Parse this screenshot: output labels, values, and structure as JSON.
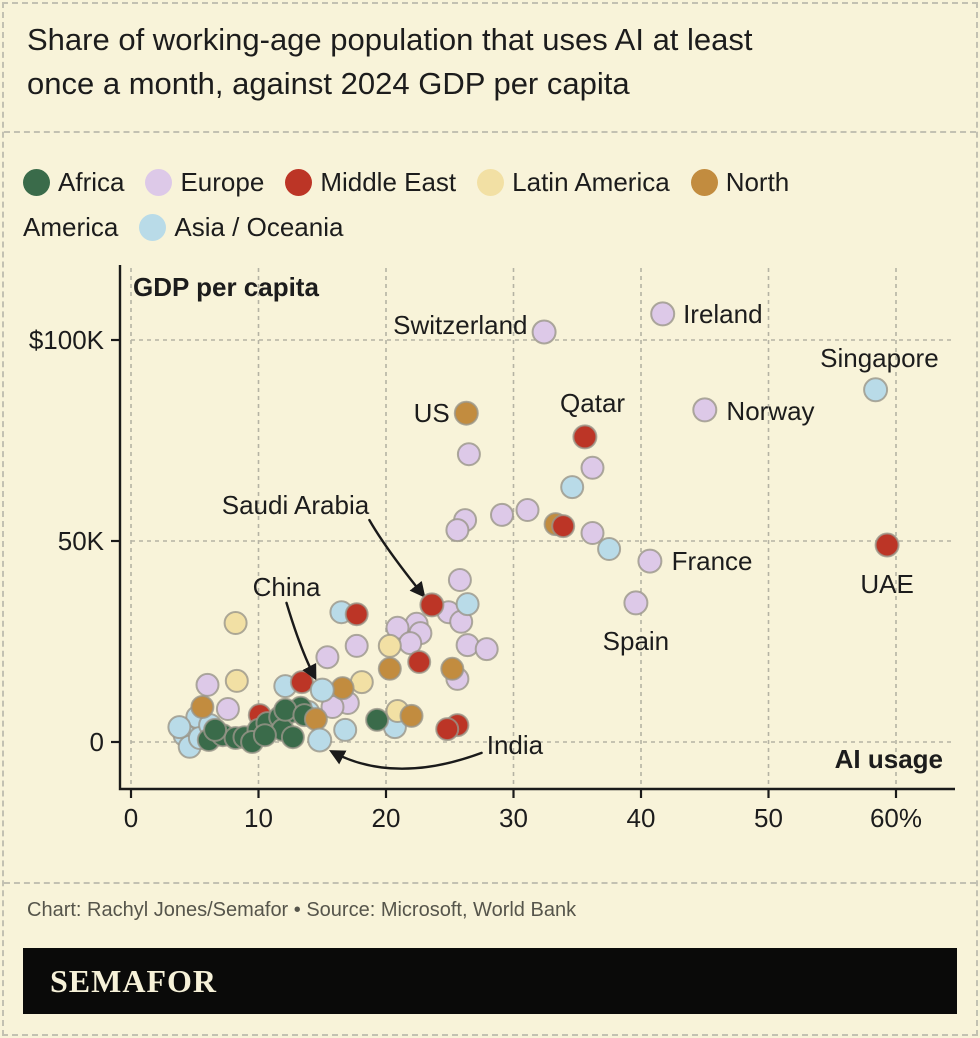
{
  "title": {
    "lines": [
      "Share of working-age population that uses AI at least",
      "once a month, against 2024 GDP per capita"
    ]
  },
  "colors": {
    "africa": "#3a6b4a",
    "europe": "#ddc9e8",
    "middle_east": "#bc3526",
    "latin_america": "#f2e0a4",
    "north_america": "#c28c3f",
    "asia_oceania": "#b9dbe8",
    "dot_stroke": "#9a968a",
    "background": "#f8f3d9",
    "grid": "#b5b3a4",
    "axis": "#1a1a1a",
    "text": "#1c1c1c",
    "muted_text": "#56554b",
    "logo_bg": "#0a0a09",
    "logo_text": "#f6f1d8"
  },
  "legend": {
    "rows": [
      [
        {
          "region": "africa",
          "label": "Africa"
        },
        {
          "region": "europe",
          "label": "Europe"
        },
        {
          "region": "middle_east",
          "label": "Middle East"
        },
        {
          "region": "latin_america",
          "label": "Latin America"
        },
        {
          "region": "north_america",
          "label": "North"
        }
      ],
      [
        {
          "region": null,
          "label": "America"
        },
        {
          "region": "asia_oceania",
          "label": "Asia / Oceania"
        }
      ]
    ]
  },
  "chart_data": {
    "type": "scatter",
    "x_axis": {
      "label": "AI usage",
      "units": "% of working-age population",
      "ticks": [
        0,
        10,
        20,
        30,
        40,
        50,
        60
      ],
      "tick_labels": [
        "0",
        "10",
        "20",
        "30",
        "40",
        "50",
        "60%"
      ],
      "range": [
        0,
        64.5
      ]
    },
    "y_axis": {
      "label": "GDP per capita",
      "units": "USD thousands",
      "ticks": [
        0,
        50,
        100
      ],
      "tick_labels": [
        "0",
        "50K",
        "$100K"
      ],
      "range": [
        0,
        118
      ]
    },
    "grid": true,
    "labeled_points": [
      {
        "name": "Switzerland",
        "region": "europe",
        "x": 32.4,
        "y": 102.0
      },
      {
        "name": "Ireland",
        "region": "europe",
        "x": 41.7,
        "y": 106.5
      },
      {
        "name": "Singapore",
        "region": "asia_oceania",
        "x": 58.4,
        "y": 87.6
      },
      {
        "name": "US",
        "region": "north_america",
        "x": 26.3,
        "y": 81.8
      },
      {
        "name": "Norway",
        "region": "europe",
        "x": 45.0,
        "y": 82.6
      },
      {
        "name": "Qatar",
        "region": "middle_east",
        "x": 35.6,
        "y": 75.9
      },
      {
        "name": "Saudi Arabia",
        "region": "middle_east",
        "x": 23.6,
        "y": 34.1
      },
      {
        "name": "France",
        "region": "europe",
        "x": 40.7,
        "y": 45.0
      },
      {
        "name": "Spain",
        "region": "europe",
        "x": 39.6,
        "y": 34.6
      },
      {
        "name": "UAE",
        "region": "middle_east",
        "x": 59.3,
        "y": 49.0
      },
      {
        "name": "China",
        "region": "asia_oceania",
        "x": 15.0,
        "y": 12.9
      },
      {
        "name": "India",
        "region": "asia_oceania",
        "x": 14.8,
        "y": 0.5
      }
    ],
    "labels": [
      {
        "for": "Switzerland",
        "x": 31.1,
        "y": 103.7,
        "anchor": "end"
      },
      {
        "for": "Ireland",
        "x": 43.3,
        "y": 106.5,
        "anchor": "start"
      },
      {
        "for": "Singapore",
        "x": 58.7,
        "y": 95.5,
        "anchor": "middle"
      },
      {
        "for": "US",
        "x": 25.0,
        "y": 81.8,
        "anchor": "end"
      },
      {
        "for": "Norway",
        "x": 46.7,
        "y": 82.3,
        "anchor": "start"
      },
      {
        "for": "Qatar",
        "x": 36.2,
        "y": 84.3,
        "anchor": "middle"
      },
      {
        "for": "Saudi Arabia",
        "x": 12.9,
        "y": 59.0,
        "anchor": "middle"
      },
      {
        "for": "France",
        "x": 42.4,
        "y": 45.0,
        "anchor": "start"
      },
      {
        "for": "Spain",
        "x": 39.6,
        "y": 25.1,
        "anchor": "middle"
      },
      {
        "for": "UAE",
        "x": 59.3,
        "y": 39.3,
        "anchor": "middle"
      },
      {
        "for": "China",
        "x": 12.2,
        "y": 38.6,
        "anchor": "middle"
      },
      {
        "for": "India",
        "x": 27.9,
        "y": -0.7,
        "anchor": "start"
      }
    ],
    "arrows": [
      {
        "for": "Saudi Arabia",
        "from": [
          18.7,
          55.2
        ],
        "ctrl": [
          20.0,
          48.0
        ],
        "to": [
          22.9,
          36.6
        ]
      },
      {
        "for": "China",
        "from": [
          12.2,
          34.6
        ],
        "ctrl": [
          13.3,
          22.9
        ],
        "to": [
          14.4,
          16.2
        ]
      },
      {
        "for": "India",
        "from": [
          27.5,
          -2.7
        ],
        "ctrl": [
          20.7,
          -10.7
        ],
        "to": [
          15.8,
          -2.5
        ]
      }
    ],
    "points": [
      {
        "region": "europe",
        "x": 26.5,
        "y": 71.6
      },
      {
        "region": "europe",
        "x": 36.2,
        "y": 68.2
      },
      {
        "region": "europe",
        "x": 31.1,
        "y": 57.7
      },
      {
        "region": "europe",
        "x": 29.1,
        "y": 56.5
      },
      {
        "region": "europe",
        "x": 26.2,
        "y": 55.2
      },
      {
        "region": "europe",
        "x": 25.6,
        "y": 52.7
      },
      {
        "region": "europe",
        "x": 36.2,
        "y": 52.0
      },
      {
        "region": "europe",
        "x": 25.8,
        "y": 40.3
      },
      {
        "region": "europe",
        "x": 24.9,
        "y": 32.3
      },
      {
        "region": "europe",
        "x": 25.9,
        "y": 29.9
      },
      {
        "region": "europe",
        "x": 22.4,
        "y": 29.4
      },
      {
        "region": "europe",
        "x": 22.7,
        "y": 27.1
      },
      {
        "region": "europe",
        "x": 20.9,
        "y": 28.4
      },
      {
        "region": "europe",
        "x": 21.9,
        "y": 24.6
      },
      {
        "region": "europe",
        "x": 17.7,
        "y": 23.9
      },
      {
        "region": "europe",
        "x": 26.4,
        "y": 24.1
      },
      {
        "region": "europe",
        "x": 27.9,
        "y": 23.1
      },
      {
        "region": "europe",
        "x": 25.6,
        "y": 15.7
      },
      {
        "region": "europe",
        "x": 15.4,
        "y": 21.1
      },
      {
        "region": "europe",
        "x": 17.0,
        "y": 9.7
      },
      {
        "region": "europe",
        "x": 15.8,
        "y": 8.7
      },
      {
        "region": "europe",
        "x": 6.0,
        "y": 14.2
      },
      {
        "region": "europe",
        "x": 7.6,
        "y": 8.2
      },
      {
        "region": "asia_oceania",
        "x": 34.6,
        "y": 63.4
      },
      {
        "region": "asia_oceania",
        "x": 37.5,
        "y": 48.0
      },
      {
        "region": "asia_oceania",
        "x": 26.4,
        "y": 34.3
      },
      {
        "region": "asia_oceania",
        "x": 16.5,
        "y": 32.3
      },
      {
        "region": "asia_oceania",
        "x": 16.8,
        "y": 3.0
      },
      {
        "region": "asia_oceania",
        "x": 20.7,
        "y": 3.7
      },
      {
        "region": "asia_oceania",
        "x": 12.1,
        "y": 13.9
      },
      {
        "region": "asia_oceania",
        "x": 13.9,
        "y": 7.5
      },
      {
        "region": "asia_oceania",
        "x": 5.2,
        "y": 6.2
      },
      {
        "region": "asia_oceania",
        "x": 4.2,
        "y": 1.7
      },
      {
        "region": "asia_oceania",
        "x": 4.6,
        "y": -1.2
      },
      {
        "region": "asia_oceania",
        "x": 3.8,
        "y": 3.7
      },
      {
        "region": "asia_oceania",
        "x": 5.4,
        "y": 1.0
      },
      {
        "region": "asia_oceania",
        "x": 6.2,
        "y": 4.2
      },
      {
        "region": "latin_america",
        "x": 8.2,
        "y": 29.6
      },
      {
        "region": "latin_america",
        "x": 8.3,
        "y": 15.2
      },
      {
        "region": "latin_america",
        "x": 20.3,
        "y": 23.9
      },
      {
        "region": "latin_america",
        "x": 20.9,
        "y": 7.7
      },
      {
        "region": "latin_america",
        "x": 18.1,
        "y": 14.9
      },
      {
        "region": "north_america",
        "x": 33.3,
        "y": 54.2
      },
      {
        "region": "middle_east",
        "x": 33.9,
        "y": 53.7
      },
      {
        "region": "middle_east",
        "x": 17.7,
        "y": 31.8
      },
      {
        "region": "middle_east",
        "x": 22.6,
        "y": 19.9
      },
      {
        "region": "middle_east",
        "x": 13.4,
        "y": 14.9
      },
      {
        "region": "middle_east",
        "x": 25.6,
        "y": 4.2
      },
      {
        "region": "middle_east",
        "x": 24.8,
        "y": 3.2
      },
      {
        "region": "middle_east",
        "x": 10.1,
        "y": 6.7
      },
      {
        "region": "africa",
        "x": 6.1,
        "y": 0.5
      },
      {
        "region": "africa",
        "x": 7.2,
        "y": 1.7
      },
      {
        "region": "africa",
        "x": 8.2,
        "y": 1.0
      },
      {
        "region": "africa",
        "x": 8.9,
        "y": 1.2
      },
      {
        "region": "africa",
        "x": 10.0,
        "y": 3.0
      },
      {
        "region": "africa",
        "x": 10.7,
        "y": 4.7
      },
      {
        "region": "africa",
        "x": 11.7,
        "y": 6.2
      },
      {
        "region": "africa",
        "x": 12.5,
        "y": 7.5
      },
      {
        "region": "africa",
        "x": 13.3,
        "y": 8.5
      },
      {
        "region": "africa",
        "x": 11.9,
        "y": 3.0
      },
      {
        "region": "africa",
        "x": 12.7,
        "y": 1.2
      },
      {
        "region": "africa",
        "x": 19.3,
        "y": 5.5
      },
      {
        "region": "africa",
        "x": 12.1,
        "y": 8.0
      },
      {
        "region": "africa",
        "x": 6.6,
        "y": 3.0
      },
      {
        "region": "africa",
        "x": 9.5,
        "y": 0.0
      },
      {
        "region": "africa",
        "x": 10.5,
        "y": 1.7
      },
      {
        "region": "africa",
        "x": 13.6,
        "y": 6.7
      },
      {
        "region": "north_america",
        "x": 25.2,
        "y": 18.2
      },
      {
        "region": "north_america",
        "x": 20.3,
        "y": 18.2
      },
      {
        "region": "north_america",
        "x": 22.0,
        "y": 6.5
      },
      {
        "region": "north_america",
        "x": 14.5,
        "y": 5.7
      },
      {
        "region": "north_america",
        "x": 16.6,
        "y": 13.4
      },
      {
        "region": "north_america",
        "x": 5.6,
        "y": 8.7
      }
    ]
  },
  "footer": {
    "credit": "Chart: Rachyl Jones/Semafor • Source: Microsoft, World Bank",
    "logo": "SEMAFOR"
  }
}
